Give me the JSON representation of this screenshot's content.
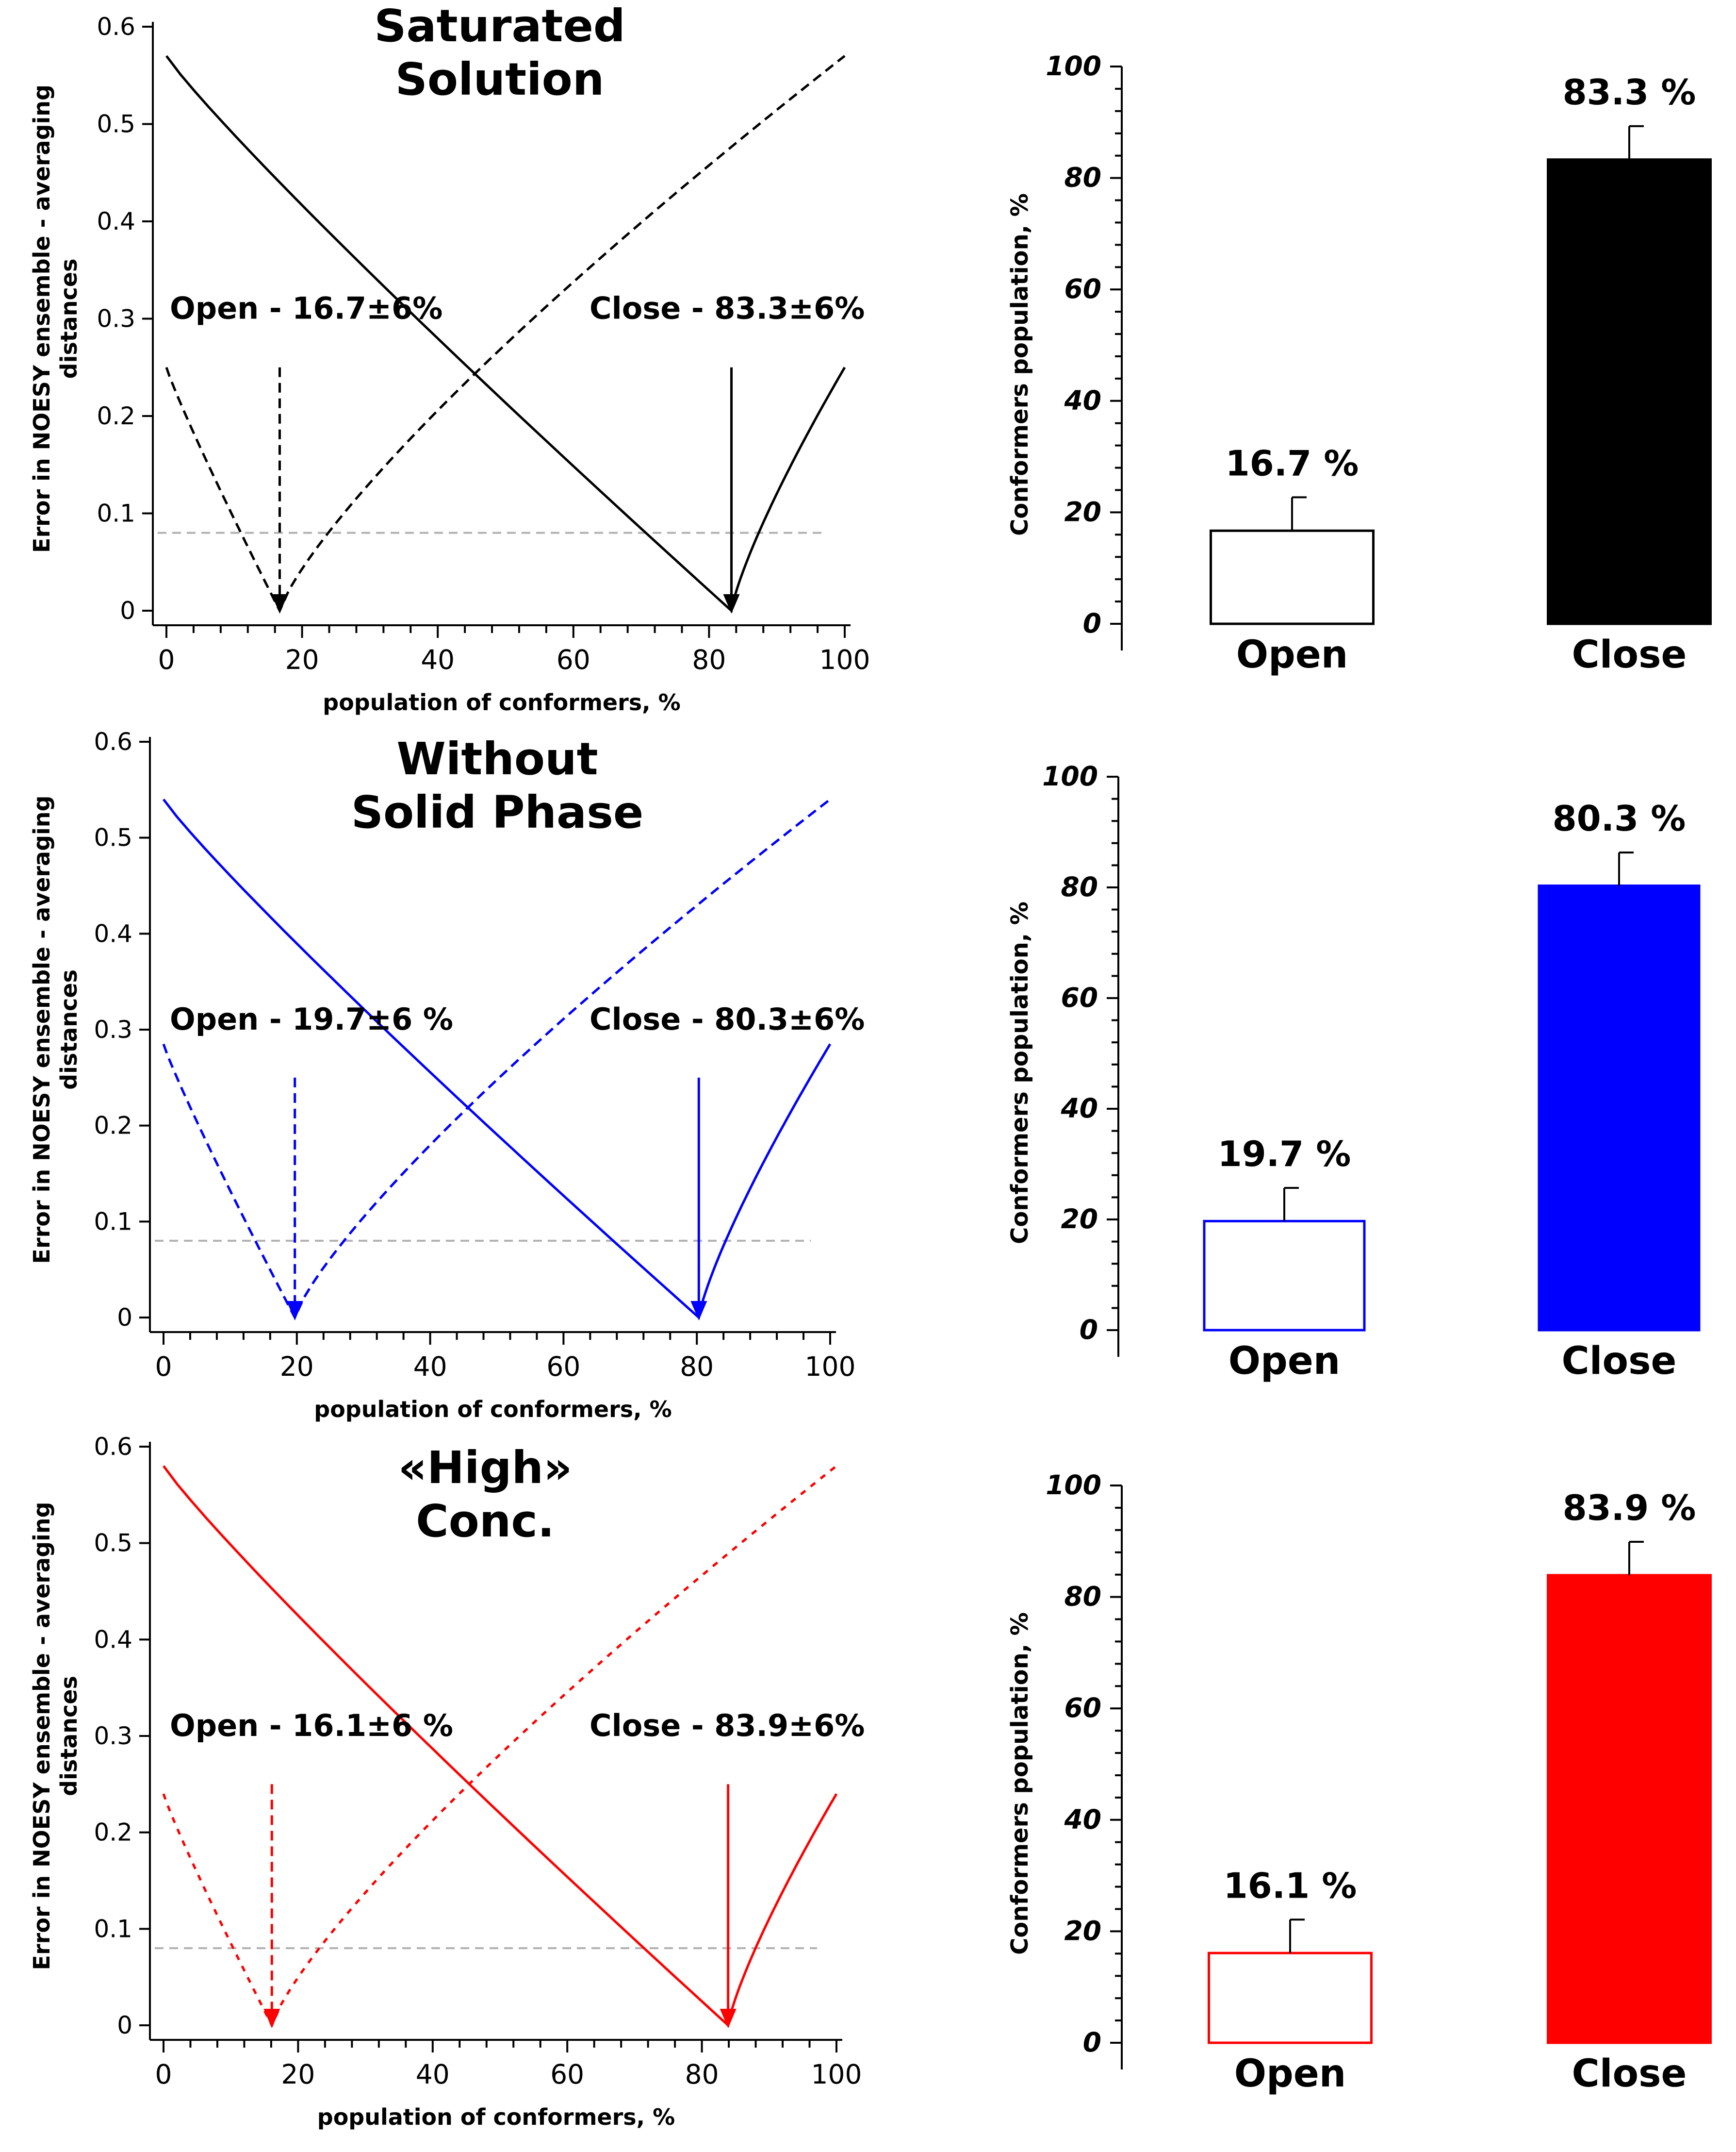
{
  "chart_data": [
    {
      "type": "line",
      "panel": "top-left",
      "title_lines": [
        "Saturated",
        "Solution"
      ],
      "ylabel_lines": [
        "Error in NOESY ensemble - averaging",
        "distances"
      ],
      "xlabel": "population of conformers, %",
      "xlim": [
        0,
        100
      ],
      "ylim": [
        0,
        0.6
      ],
      "x_tick_labels": [
        "0",
        "20",
        "40",
        "60",
        "80",
        "100"
      ],
      "y_tick_labels": [
        "0",
        "0.1",
        "0.2",
        "0.3",
        "0.4",
        "0.5",
        "0.6"
      ],
      "color": "#000000",
      "series": [
        {
          "name": "Open (dashed)",
          "style": "dashed",
          "x": [
            0,
            16.7,
            100
          ],
          "y": [
            0.25,
            0.0,
            0.57
          ]
        },
        {
          "name": "Close (solid)",
          "style": "solid",
          "x": [
            0,
            83.3,
            100
          ],
          "y": [
            0.57,
            0.0,
            0.25
          ]
        }
      ],
      "threshold": {
        "y": 0.08,
        "style": "dashed",
        "color": "#b0b0b0"
      },
      "markers": [
        {
          "label": "Open - 16.7±6%",
          "x": 16.7,
          "style": "dashed"
        },
        {
          "label": "Close - 83.3±6%",
          "x": 83.3,
          "style": "solid"
        }
      ]
    },
    {
      "type": "line",
      "panel": "middle-left",
      "title_lines": [
        "Without",
        "Solid Phase"
      ],
      "ylabel_lines": [
        "Error in NOESY ensemble - averaging",
        "distances"
      ],
      "xlabel": "population of conformers, %",
      "xlim": [
        0,
        100
      ],
      "ylim": [
        0,
        0.6
      ],
      "x_tick_labels": [
        "0",
        "20",
        "40",
        "60",
        "80",
        "100"
      ],
      "y_tick_labels": [
        "0",
        "0.1",
        "0.2",
        "0.3",
        "0.4",
        "0.5",
        "0.6"
      ],
      "color": "#0000ff",
      "series": [
        {
          "name": "Open (dashed)",
          "style": "dashed",
          "x": [
            0,
            19.7,
            100
          ],
          "y": [
            0.285,
            0.0,
            0.54
          ]
        },
        {
          "name": "Close (solid)",
          "style": "solid",
          "x": [
            0,
            80.3,
            100
          ],
          "y": [
            0.54,
            0.0,
            0.285
          ]
        }
      ],
      "threshold": {
        "y": 0.08,
        "style": "dashed",
        "color": "#b0b0b0"
      },
      "markers": [
        {
          "label": "Open - 19.7±6 %",
          "x": 19.7,
          "style": "dashed"
        },
        {
          "label": "Close - 80.3±6%",
          "x": 80.3,
          "style": "solid"
        }
      ]
    },
    {
      "type": "line",
      "panel": "bottom-left",
      "title_lines": [
        "«High»",
        "Conc."
      ],
      "ylabel_lines": [
        "Error in NOESY ensemble - averaging",
        "distances"
      ],
      "xlabel": "population of conformers, %",
      "xlim": [
        0,
        100
      ],
      "ylim": [
        0,
        0.6
      ],
      "x_tick_labels": [
        "0",
        "20",
        "40",
        "60",
        "80",
        "100"
      ],
      "y_tick_labels": [
        "0",
        "0.1",
        "0.2",
        "0.3",
        "0.4",
        "0.5",
        "0.6"
      ],
      "color": "#ff0000",
      "series": [
        {
          "name": "Open (dotted)",
          "style": "dotted",
          "x": [
            0,
            16.1,
            100
          ],
          "y": [
            0.24,
            0.0,
            0.58
          ]
        },
        {
          "name": "Close (solid)",
          "style": "solid",
          "x": [
            0,
            83.9,
            100
          ],
          "y": [
            0.58,
            0.0,
            0.24
          ]
        }
      ],
      "threshold": {
        "y": 0.08,
        "style": "dashed",
        "color": "#b0b0b0"
      },
      "markers": [
        {
          "label": "Open - 16.1±6 %",
          "x": 16.1,
          "style": "dashed"
        },
        {
          "label": "Close - 83.9±6%",
          "x": 83.9,
          "style": "solid"
        }
      ]
    },
    {
      "type": "bar",
      "panel": "top-right",
      "ylabel": "Conformers population, %",
      "ylim": [
        0,
        100
      ],
      "y_tick_labels": [
        "0",
        "20",
        "40",
        "60",
        "80",
        "100"
      ],
      "categories": [
        "Open",
        "Close"
      ],
      "values": [
        16.7,
        83.3
      ],
      "error": [
        6,
        6
      ],
      "value_labels": [
        "16.7 %",
        "83.3 %"
      ],
      "fills": [
        "#ffffff",
        "#000000"
      ],
      "stroke": "#000000"
    },
    {
      "type": "bar",
      "panel": "middle-right",
      "ylabel": "Conformers population, %",
      "ylim": [
        0,
        100
      ],
      "y_tick_labels": [
        "0",
        "20",
        "40",
        "60",
        "80",
        "100"
      ],
      "categories": [
        "Open",
        "Close"
      ],
      "values": [
        19.7,
        80.3
      ],
      "error": [
        6,
        6
      ],
      "value_labels": [
        "19.7 %",
        "80.3 %"
      ],
      "fills": [
        "#ffffff",
        "#0000ff"
      ],
      "stroke": "#0000ff"
    },
    {
      "type": "bar",
      "panel": "bottom-right",
      "ylabel": "Conformers population, %",
      "ylim": [
        0,
        100
      ],
      "y_tick_labels": [
        "0",
        "20",
        "40",
        "60",
        "80",
        "100"
      ],
      "categories": [
        "Open",
        "Close"
      ],
      "values": [
        16.1,
        83.9
      ],
      "error": [
        6,
        6
      ],
      "value_labels": [
        "16.1 %",
        "83.9 %"
      ],
      "fills": [
        "#ffffff",
        "#ff0000"
      ],
      "stroke": "#ff0000"
    }
  ]
}
